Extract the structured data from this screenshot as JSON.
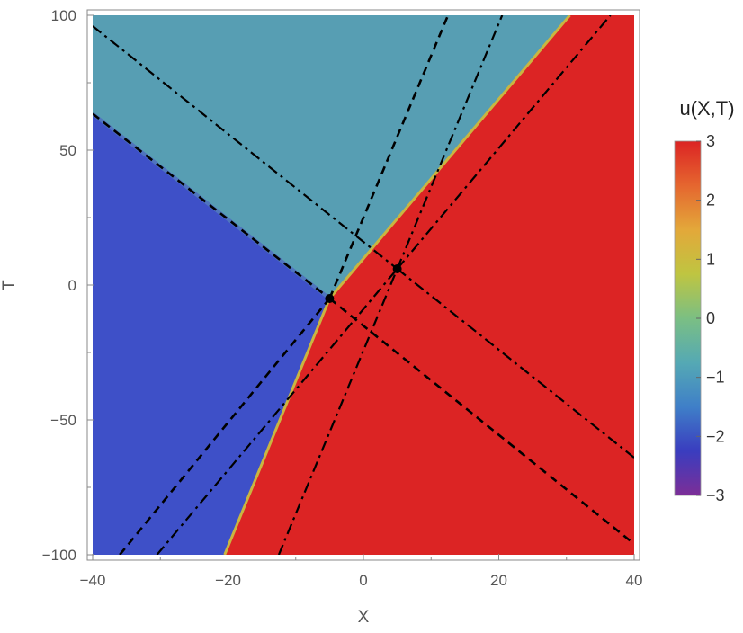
{
  "chart_data": {
    "type": "heatmap",
    "title": "",
    "xlabel": "X",
    "ylabel": "T",
    "xlim": [
      -40,
      40
    ],
    "ylim": [
      -100,
      100
    ],
    "x_ticks": [
      -40,
      -20,
      0,
      20,
      40
    ],
    "y_ticks": [
      -100,
      -50,
      0,
      50,
      100
    ],
    "x_tick_labels": [
      "−40",
      "−20",
      "0",
      "20",
      "40"
    ],
    "y_tick_labels": [
      "−100",
      "−50",
      "0",
      "50",
      "100"
    ],
    "regions": [
      {
        "level": -2,
        "color": "#3E50C8",
        "polygon": [
          [
            -40,
            -100
          ],
          [
            -20.5,
            -100
          ],
          [
            -5,
            -5
          ],
          [
            -40,
            63.5
          ]
        ]
      },
      {
        "level": -1,
        "color": "#579EB3",
        "polygon": [
          [
            -40,
            100
          ],
          [
            30.5,
            100
          ],
          [
            -5,
            -5
          ],
          [
            -40,
            63.5
          ]
        ]
      },
      {
        "level": 3,
        "color": "#DC2424",
        "polygon": [
          [
            -20.5,
            -100
          ],
          [
            40,
            -100
          ],
          [
            40,
            100
          ],
          [
            30.5,
            100
          ],
          [
            -5,
            -5
          ]
        ]
      }
    ],
    "intersection_points": [
      {
        "x": -5,
        "y": -5
      },
      {
        "x": 5,
        "y": 6
      }
    ],
    "dashed_lines": [
      {
        "from": [
          -40,
          63.5
        ],
        "to": [
          -5,
          -5
        ]
      },
      {
        "from": [
          -5,
          -5
        ],
        "to": [
          40,
          -96
        ]
      },
      {
        "from": [
          -36,
          -100
        ],
        "to": [
          -5,
          -5
        ]
      },
      {
        "from": [
          -5,
          -5
        ],
        "to": [
          12.5,
          100
        ]
      }
    ],
    "dashdot_lines": [
      {
        "from": [
          -40,
          96
        ],
        "to": [
          5,
          6
        ]
      },
      {
        "from": [
          5,
          6
        ],
        "to": [
          40,
          -64
        ]
      },
      {
        "from": [
          -30.5,
          -100
        ],
        "to": [
          5,
          6
        ]
      },
      {
        "from": [
          5,
          6
        ],
        "to": [
          36.5,
          100
        ]
      },
      {
        "from": [
          -12.5,
          -100
        ],
        "to": [
          5,
          6
        ]
      },
      {
        "from": [
          5,
          6
        ],
        "to": [
          20.5,
          100
        ]
      }
    ],
    "legend": {
      "title": "u(X,T)",
      "position": "right",
      "min": -3,
      "max": 3,
      "ticks": [
        3,
        2,
        1,
        0,
        -1,
        -2,
        -3
      ],
      "tick_labels": [
        "3",
        "2",
        "1",
        "0",
        "−1",
        "−2",
        "−3"
      ],
      "gradient": [
        "#7C2E97",
        "#3A3DBF",
        "#3F7FC8",
        "#55A9B4",
        "#7BBF83",
        "#BFC541",
        "#E3A83A",
        "#E5662F",
        "#DC2424"
      ]
    }
  }
}
